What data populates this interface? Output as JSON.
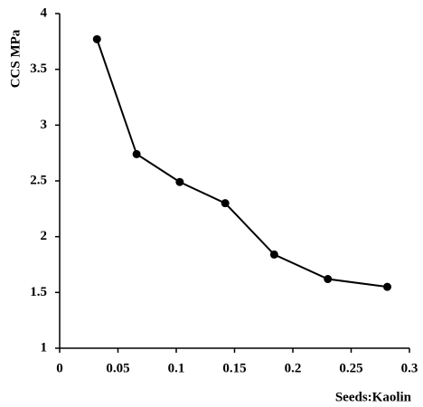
{
  "chart_data": {
    "type": "line",
    "x_label": "Seeds:Kaolin",
    "y_label": "CCS MPa",
    "series": [
      {
        "name": "CCS",
        "color": "#000000",
        "x": [
          0.032,
          0.066,
          0.103,
          0.142,
          0.184,
          0.23,
          0.281
        ],
        "values": [
          3.77,
          2.74,
          2.49,
          2.3,
          1.84,
          1.62,
          1.55
        ]
      }
    ],
    "xlim": [
      0,
      0.3
    ],
    "xticks": [
      0,
      0.05,
      0.1,
      0.15,
      0.2,
      0.25,
      0.3
    ],
    "ylim": [
      1,
      4
    ],
    "yticks": [
      1,
      1.5,
      2,
      2.5,
      3,
      3.5,
      4
    ],
    "grid": false
  }
}
